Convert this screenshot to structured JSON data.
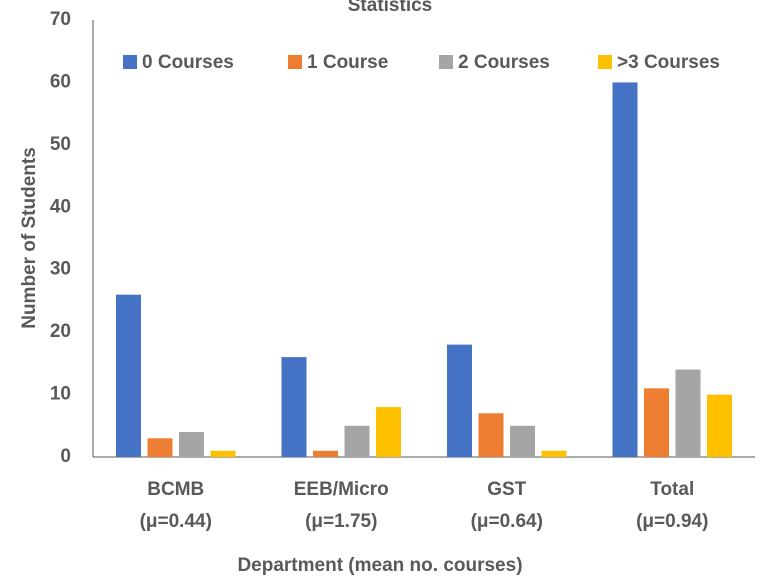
{
  "chart_data": {
    "type": "bar",
    "title": "Statistics",
    "x_label": "Department (mean no. courses)",
    "y_label": "Number of Students",
    "categories": [
      "BCMB\n(μ=0.44)",
      "EEB/Micro\n(μ=1.75)",
      "GST\n(μ=0.64)",
      "Total\n(μ=0.94)"
    ],
    "series": [
      {
        "name": "0 Courses",
        "color": "#4472c4",
        "values": [
          26,
          16,
          18,
          60
        ]
      },
      {
        "name": "1 Course",
        "color": "#ed7d31",
        "values": [
          3,
          1,
          7,
          11
        ]
      },
      {
        "name": "2 Courses",
        "color": "#a5a5a5",
        "values": [
          4,
          5,
          5,
          14
        ]
      },
      {
        "name": ">3 Courses",
        "color": "#ffc000",
        "values": [
          1,
          8,
          1,
          10
        ]
      }
    ],
    "ylim": [
      0,
      70
    ],
    "yticks": [
      0,
      10,
      20,
      30,
      40,
      50,
      60,
      70
    ],
    "grid": false,
    "legend": "top"
  }
}
